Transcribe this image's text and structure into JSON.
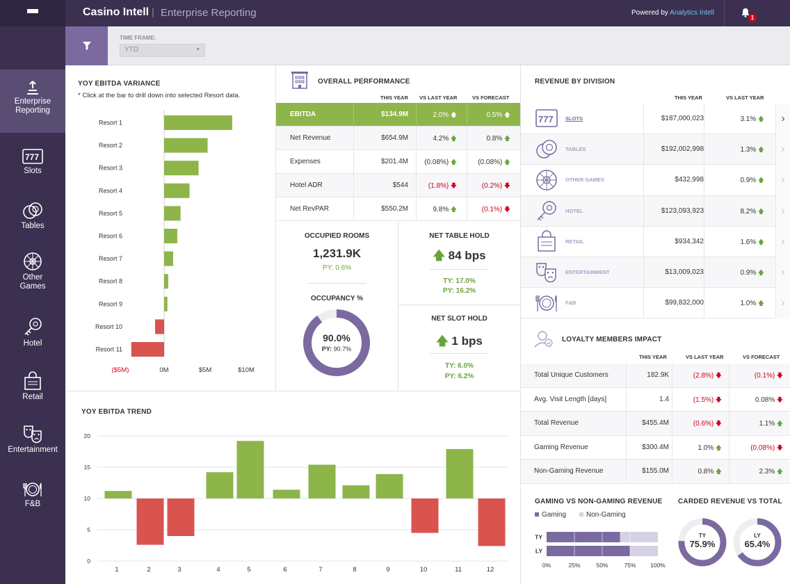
{
  "header": {
    "title": "Casino Intell",
    "separator": "|",
    "subtitle": "Enterprise Reporting",
    "powered_prefix": "Powered by",
    "powered_brand": "Analytics Intell",
    "notifications": "1"
  },
  "sidebar": {
    "items": [
      {
        "label": "Enterprise\nReporting",
        "icon": "upload-icon"
      },
      {
        "label": "Slots",
        "icon": "slots-icon"
      },
      {
        "label": "Tables",
        "icon": "tables-icon"
      },
      {
        "label": "Other\nGames",
        "icon": "roulette-icon"
      },
      {
        "label": "Hotel",
        "icon": "hotel-key-icon"
      },
      {
        "label": "Retail",
        "icon": "retail-bag-icon"
      },
      {
        "label": "Entertainment",
        "icon": "masks-icon"
      },
      {
        "label": "F&B",
        "icon": "plate-icon"
      }
    ]
  },
  "filter": {
    "label": "TIME FRAME:",
    "value": "YTD"
  },
  "variance": {
    "title": "YOY EBITDA VARIANCE",
    "hint": "* Click at the bar to drill down into selected Resort data."
  },
  "trend": {
    "title": "YOY EBITDA TREND"
  },
  "overall": {
    "title": "OVERALL PERFORMANCE",
    "col_this": "THIS YEAR",
    "col_ly": "VS LAST YEAR",
    "col_fc": "VS FORECAST",
    "rows": [
      {
        "label": "EBITDA",
        "this": "$134.9M",
        "ly": "2.0%",
        "ly_dir": "up",
        "fc": "0.5%",
        "fc_dir": "up"
      },
      {
        "label": "Net Revenue",
        "this": "$654.9M",
        "ly": "4.2%",
        "ly_dir": "up",
        "fc": "0.8%",
        "fc_dir": "up"
      },
      {
        "label": "Expenses",
        "this": "$201.4M",
        "ly": "(0.08%)",
        "ly_dir": "up",
        "fc": "(0.08%)",
        "fc_dir": "up"
      },
      {
        "label": "Hotel ADR",
        "this": "$544",
        "ly": "(1.8%)",
        "ly_dir": "down",
        "fc": "(0.2%)",
        "fc_dir": "down"
      },
      {
        "label": "Net RevPAR",
        "this": "$550.2M",
        "ly": "9.8%",
        "ly_dir": "up",
        "fc": "(0.1%)",
        "fc_dir": "down"
      }
    ]
  },
  "kpis": {
    "occupied_title": "OCCUPIED ROOMS",
    "occupied_value": "1,231.9K",
    "occupied_py": "PY: 0.6%",
    "occupancy_title": "OCCUPANCY %",
    "occupancy_value": "90.0%",
    "occupancy_py_label": "PY:",
    "occupancy_py": "90.7%",
    "occupancy_pct": 0.9,
    "table_hold_title": "NET TABLE HOLD",
    "table_hold_value": "84 bps",
    "table_hold_ty": "TY: 17.0%",
    "table_hold_py": "PY: 16.2%",
    "slot_hold_title": "NET SLOT HOLD",
    "slot_hold_value": "1 bps",
    "slot_hold_ty": "TY: 6.0%",
    "slot_hold_py": "PY: 6.2%"
  },
  "division": {
    "title": "REVENUE BY DIVISION",
    "col_this": "THIS YEAR",
    "col_ly": "VS LAST YEAR",
    "rows": [
      {
        "label": "SLOTS",
        "this": "$187,000,023",
        "ly": "3.1%",
        "icon": "slots-icon"
      },
      {
        "label": "TABLES",
        "this": "$192,002,998",
        "ly": "1.3%",
        "icon": "tables-icon"
      },
      {
        "label": "OTHER GAMES",
        "this": "$432,998",
        "ly": "0.9%",
        "icon": "roulette-icon"
      },
      {
        "label": "HOTEL",
        "this": "$123,093,923",
        "ly": "8.2%",
        "icon": "hotel-key-icon"
      },
      {
        "label": "RETAIL",
        "this": "$934,342",
        "ly": "1.6%",
        "icon": "retail-bag-icon"
      },
      {
        "label": "ENTERTAINMENT",
        "this": "$13,009,023",
        "ly": "0.9%",
        "icon": "masks-icon"
      },
      {
        "label": "F&B",
        "this": "$99,832,000",
        "ly": "1.0%",
        "icon": "plate-icon"
      }
    ]
  },
  "loyalty": {
    "title": "LOYALTY MEMBERS IMPACT",
    "col_this": "THIS YEAR",
    "col_ly": "VS LAST YEAR",
    "col_fc": "VS FORECAST",
    "rows": [
      {
        "label": "Total Unique Customers",
        "this": "182.9K",
        "ly": "(2.8%)",
        "ly_dir": "down",
        "fc": "(0.1%)",
        "fc_dir": "down"
      },
      {
        "label": "Avg. Visit Length [days]",
        "this": "1.4",
        "ly": "(1.5%)",
        "ly_dir": "down",
        "fc": "0.08%",
        "fc_dir": "down"
      },
      {
        "label": "Total Revenue",
        "this": "$455.4M",
        "ly": "(0.6%)",
        "ly_dir": "down",
        "fc": "1.1%",
        "fc_dir": "up"
      },
      {
        "label": "Gaming Revenue",
        "this": "$300.4M",
        "ly": "1.0%",
        "ly_dir": "up",
        "fc": "(0.08%)",
        "fc_dir": "down"
      },
      {
        "label": "Non-Gaming Revenue",
        "this": "$155.0M",
        "ly": "0.8%",
        "ly_dir": "up",
        "fc": "2.3%",
        "fc_dir": "up"
      }
    ]
  },
  "gaming_split": {
    "title": "GAMING VS NON-GAMING REVENUE",
    "legend_gaming": "Gaming",
    "legend_non": "Non-Gaming"
  },
  "carded": {
    "title": "CARDED REVENUE VS TOTAL",
    "ty_label": "TY",
    "ty_value": "75.9%",
    "ty_pct": 0.759,
    "ly_label": "LY",
    "ly_value": "65.4%",
    "ly_pct": 0.654
  },
  "colors": {
    "green": "#8db54a",
    "red": "#d9534f",
    "purple": "#7a6aa0",
    "dark": "#3b3050"
  },
  "chart_data": [
    {
      "type": "bar",
      "orientation": "horizontal",
      "categories": [
        "Resort 1",
        "Resort 2",
        "Resort 3",
        "Resort 4",
        "Resort 5",
        "Resort 6",
        "Resort 7",
        "Resort 8",
        "Resort 9",
        "Resort 10",
        "Resort 11"
      ],
      "values": [
        8.3,
        5.3,
        4.2,
        3.1,
        2.0,
        1.6,
        1.1,
        0.5,
        0.4,
        -1.1,
        -4.0
      ],
      "xticks": [
        "($5M)",
        "0M",
        "$5M",
        "$10M"
      ],
      "xlim": [
        -5,
        10
      ],
      "title": "YOY EBITDA VARIANCE"
    },
    {
      "type": "bar",
      "categories": [
        "1",
        "2",
        "3",
        "4",
        "5",
        "6",
        "7",
        "8",
        "9",
        "10",
        "11",
        "12"
      ],
      "values": [
        11.2,
        2.6,
        4.0,
        14.2,
        19.2,
        11.4,
        15.4,
        12.1,
        13.9,
        4.5,
        17.9,
        2.4
      ],
      "baseline": 10,
      "yticks": [
        "0",
        "5",
        "10",
        "15",
        "20"
      ],
      "ylim": [
        0,
        20
      ],
      "title": "YOY EBITDA TREND"
    },
    {
      "type": "bar",
      "orientation": "horizontal-stacked",
      "categories": [
        "TY",
        "LY"
      ],
      "series": [
        {
          "name": "Gaming",
          "values": [
            66,
            75
          ]
        },
        {
          "name": "Non-Gaming",
          "values": [
            34,
            25
          ]
        }
      ],
      "xticks": [
        "0%",
        "25%",
        "50%",
        "75%",
        "100%"
      ],
      "xlim": [
        0,
        100
      ],
      "title": "GAMING VS NON-GAMING REVENUE"
    }
  ]
}
